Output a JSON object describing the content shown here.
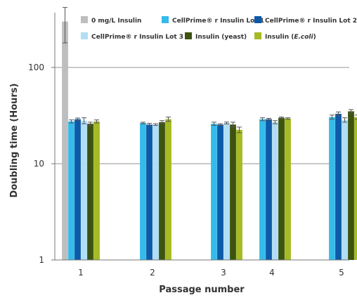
{
  "chart_data": {
    "type": "bar",
    "title": "",
    "xlabel": "Passage number",
    "ylabel": "Doubling time (Hours)",
    "y_scale": "log",
    "ylim": [
      1,
      500
    ],
    "y_ticks": [
      "1",
      "10",
      "100"
    ],
    "categories": [
      "1",
      "2",
      "3",
      "4",
      "5"
    ],
    "grid": "horizontal at major ticks",
    "legend_position": "top",
    "series": [
      {
        "name": "0 mg/L Insulin",
        "color": "#bdbec0",
        "values": [
          300,
          null,
          null,
          null,
          null
        ],
        "error": [
          120,
          null,
          null,
          null,
          null
        ]
      },
      {
        "name": "CellPrime® r Insulin Lot 1",
        "color": "#35bbea",
        "values": [
          27.5,
          26.5,
          26,
          29,
          30.5
        ],
        "error": [
          1,
          0.5,
          1,
          1,
          1.5
        ]
      },
      {
        "name": "CellPrime® r Insulin Lot 2",
        "color": "#0d5aa8",
        "values": [
          29,
          25.5,
          25.5,
          29,
          33
        ],
        "error": [
          0.8,
          0.8,
          0.5,
          0.6,
          1.5
        ]
      },
      {
        "name": "CellPrime® r Insulin Lot 3",
        "color": "#b1def5",
        "values": [
          28,
          25.5,
          26.5,
          27,
          28.5
        ],
        "error": [
          2,
          0.5,
          0.6,
          1,
          1.5
        ]
      },
      {
        "name": "Insulin (yeast)",
        "color": "#3d5410",
        "values": [
          26,
          27,
          25.5,
          30,
          35
        ],
        "error": [
          1,
          1,
          1.5,
          0.5,
          1.5
        ]
      },
      {
        "name": "Insulin (E.coli)",
        "color": "#a6ba24",
        "values": [
          27.5,
          29,
          22.5,
          29.5,
          30.5
        ],
        "error": [
          1,
          1.5,
          1.5,
          0.5,
          1.5
        ]
      }
    ]
  }
}
